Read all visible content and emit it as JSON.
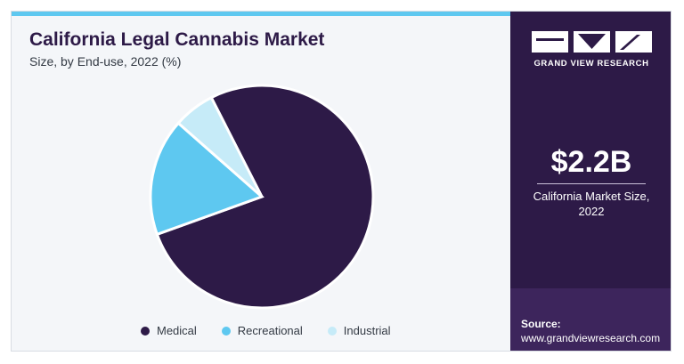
{
  "header": {
    "title": "California Legal Cannabis Market",
    "subtitle": "Size, by End-use, 2022 (%)"
  },
  "chart_data": {
    "type": "pie",
    "title": "California Legal Cannabis Market",
    "subtitle": "Size, by End-use, 2022 (%)",
    "categories": [
      "Medical",
      "Recreational",
      "Industrial"
    ],
    "values": [
      77,
      17,
      6
    ],
    "colors": [
      "#2d1a47",
      "#5ec8f0",
      "#c6ebf8"
    ],
    "legend_position": "bottom"
  },
  "sidebar": {
    "brand": "GRAND VIEW RESEARCH",
    "market_size": "$2.2B",
    "market_caption": "California Market Size, 2022",
    "source_label": "Source:",
    "source_url": "www.grandviewresearch.com"
  },
  "colors": {
    "accent": "#5ec8f0",
    "sidebar_bg": "#2d1a47"
  }
}
